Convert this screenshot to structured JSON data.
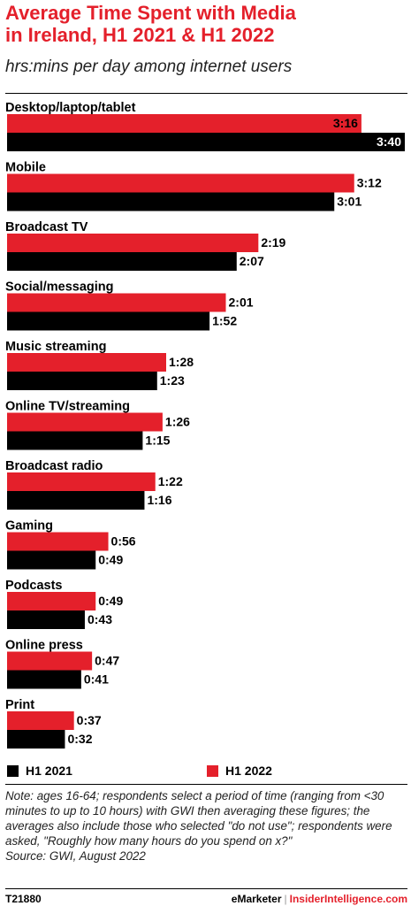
{
  "header": {
    "title_line1": "Average Time Spent with Media",
    "title_line2": "in Ireland, H1 2021 & H1 2022",
    "subtitle": "hrs:mins per day among internet users"
  },
  "legend": {
    "h1_2021": "H1 2021",
    "h1_2022": "H1 2022"
  },
  "colors": {
    "accent_red": "#e4202b",
    "bar_2022": "#e4202b",
    "bar_2021": "#000000"
  },
  "note": {
    "text": "Note: ages 16-64; respondents select a period of time (ranging from <30 minutes to up to 10 hours) with GWI then averaging these figures; the averages also include those who selected \"do not use\"; respondents were asked, \"Roughly how many hours do you spend on x?\"",
    "source": "Source:  GWI, August 2022"
  },
  "footer": {
    "code": "T21880",
    "brand_emarketer": "eMarketer",
    "brand_separator": "|",
    "brand_insider": "InsiderIntelligence.com"
  },
  "chart_data": {
    "type": "bar",
    "orientation": "horizontal",
    "title": "Average Time Spent with Media in Ireland, H1 2021 & H1 2022",
    "subtitle": "hrs:mins per day among internet users",
    "unit": "hrs:mins",
    "categories": [
      "Desktop/laptop/tablet",
      "Mobile",
      "Broadcast TV",
      "Social/messaging",
      "Music streaming",
      "Online TV/streaming",
      "Broadcast radio",
      "Gaming",
      "Podcasts",
      "Online press",
      "Print"
    ],
    "series": [
      {
        "name": "H1 2022",
        "color": "#e4202b",
        "labels": [
          "3:16",
          "3:12",
          "2:19",
          "2:01",
          "1:28",
          "1:26",
          "1:22",
          "0:56",
          "0:49",
          "0:47",
          "0:37"
        ],
        "values_minutes": [
          196,
          192,
          139,
          121,
          88,
          86,
          82,
          56,
          49,
          47,
          37
        ]
      },
      {
        "name": "H1 2021",
        "color": "#000000",
        "labels": [
          "3:40",
          "3:01",
          "2:07",
          "1:52",
          "1:23",
          "1:15",
          "1:16",
          "0:49",
          "0:43",
          "0:41",
          "0:32"
        ],
        "values_minutes": [
          220,
          181,
          127,
          112,
          83,
          75,
          76,
          49,
          43,
          41,
          32
        ]
      }
    ],
    "xlim_minutes": [
      0,
      220
    ],
    "legend_position": "bottom",
    "grid": false
  }
}
